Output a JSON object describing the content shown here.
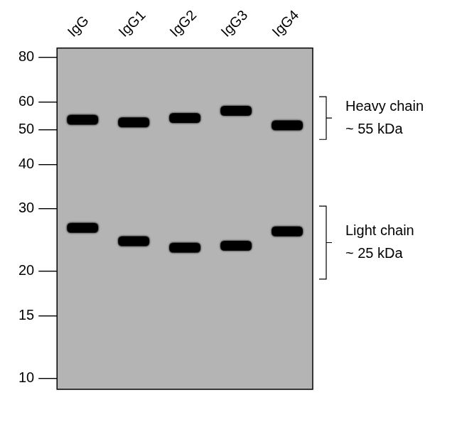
{
  "chart_data": {
    "type": "blot",
    "categories": [
      "IgG",
      "IgG1",
      "IgG2",
      "IgG3",
      "IgG4"
    ],
    "log": "y",
    "ylim": [
      9.3,
      85
    ],
    "yticks": [
      10,
      15,
      20,
      30,
      40,
      50,
      60,
      80
    ],
    "grid": false,
    "color": "#000000",
    "series": [
      {
        "name": "Heavy chain",
        "values": [
          53.4,
          52.5,
          54,
          56.6,
          51.5
        ]
      },
      {
        "name": "Light chain",
        "values": [
          26.5,
          24.3,
          23.3,
          23.6,
          25.9
        ]
      }
    ],
    "annotations": [
      {
        "series": "Heavy chain",
        "text": "~ 55 kDa",
        "range": [
          47,
          62
        ]
      },
      {
        "series": "Light chain",
        "text": "~ 25 kDa",
        "range": [
          19,
          30.5
        ]
      }
    ]
  }
}
